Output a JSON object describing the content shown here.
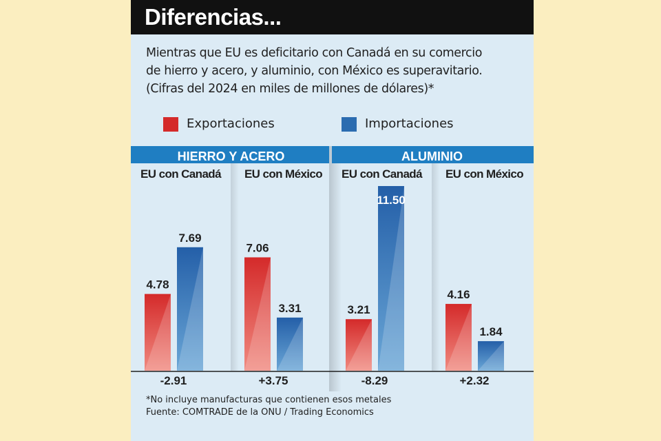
{
  "title": "Diferencias...",
  "subtitle": [
    "Mientras que EU es deficitario con Canadá en su comercio",
    "de hierro y acero, y aluminio, con México es superavitario.",
    "(Cifras del 2024 en miles de millones de dólares)*"
  ],
  "legend": [
    {
      "label": "Exportaciones",
      "color": "#d42a2a"
    },
    {
      "label": "Importaciones",
      "color": "#2b6cb0"
    }
  ],
  "chart_data": {
    "type": "bar",
    "groups": [
      {
        "title": "HIERRO Y ACERO",
        "panels": [
          {
            "label": "EU con Canadá",
            "exports": 4.78,
            "imports": 7.69,
            "balance": "-2.91"
          },
          {
            "label": "EU con México",
            "exports": 7.06,
            "imports": 3.31,
            "balance": "+3.75"
          }
        ]
      },
      {
        "title": "ALUMINIO",
        "panels": [
          {
            "label": "EU con Canadá",
            "exports": 3.21,
            "imports": 11.5,
            "balance": "-8.29"
          },
          {
            "label": "EU con México",
            "exports": 4.16,
            "imports": 1.84,
            "balance": "+2.32"
          }
        ]
      }
    ],
    "series": [
      {
        "name": "Exportaciones",
        "key": "exports"
      },
      {
        "name": "Importaciones",
        "key": "imports"
      }
    ],
    "ylim": [
      0,
      11.5
    ]
  },
  "footnotes": [
    "*No incluye manufacturas que contienen esos metales",
    "Fuente: COMTRADE de la ONU / Trading Economics"
  ],
  "colors": {
    "export": "#d42a2a",
    "import": "#2b6cb0",
    "header": "#1f7ec2",
    "card": "#dcebf5"
  }
}
